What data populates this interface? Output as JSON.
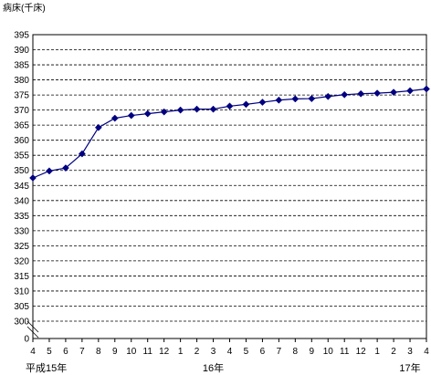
{
  "chart_data": {
    "type": "line",
    "ylabel": "病床(千床)",
    "xlabel": "",
    "categories": [
      "4",
      "5",
      "6",
      "7",
      "8",
      "9",
      "10",
      "11",
      "12",
      "1",
      "2",
      "3",
      "4",
      "5",
      "6",
      "7",
      "8",
      "9",
      "10",
      "11",
      "12",
      "1",
      "2",
      "3",
      "4"
    ],
    "period_labels": [
      {
        "text": "平成15年",
        "index": 0
      },
      {
        "text": "16年",
        "index": 11
      },
      {
        "text": "17年",
        "index": 23
      }
    ],
    "y_ticks": [
      "395",
      "390",
      "385",
      "380",
      "375",
      "370",
      "365",
      "360",
      "355",
      "350",
      "345",
      "340",
      "335",
      "330",
      "325",
      "320",
      "315",
      "310",
      "305",
      "300",
      "0"
    ],
    "ylim": [
      300,
      395
    ],
    "y_axis_break": true,
    "grid": "horizontal-dashed",
    "series": [
      {
        "color": "#000080",
        "values": [
          347.5,
          349.8,
          350.8,
          355.5,
          364.2,
          367.3,
          368.2,
          368.8,
          369.4,
          370.0,
          370.3,
          370.3,
          371.3,
          371.9,
          372.6,
          373.3,
          373.7,
          373.8,
          374.5,
          375.1,
          375.4,
          375.6,
          375.9,
          376.4,
          377.0
        ]
      }
    ]
  }
}
